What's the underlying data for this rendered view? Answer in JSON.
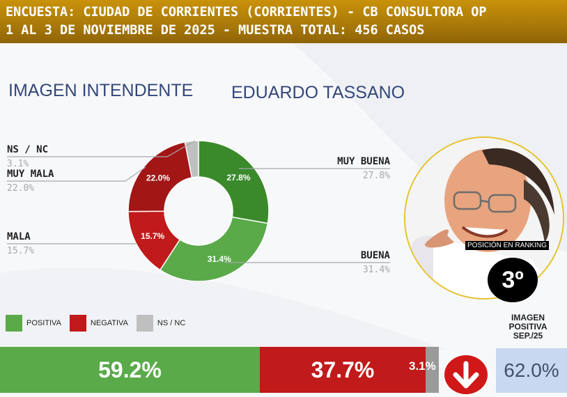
{
  "header": {
    "line1": "ENCUESTA: CIUDAD DE CORRIENTES (CORRIENTES) - CB CONSULTORA OP",
    "line2": "1 AL 3 DE NOVIEMBRE DE 2025 - MUESTRA TOTAL: 456 CASOS"
  },
  "section": {
    "title": "IMAGEN INTENDENTE",
    "person": "EDUARDO TASSANO"
  },
  "colors": {
    "header": "#a8780a",
    "muy_buena": "#3a8a2c",
    "buena": "#5aaa4a",
    "mala": "#c01a1a",
    "muy_mala": "#a21616",
    "ns_nc": "#bfbfbf",
    "positiva": "#5aaa4a",
    "negativa": "#c01a1a",
    "prev_box": "#c8d8f0"
  },
  "chart_data": {
    "type": "pie",
    "categories": [
      "MUY BUENA",
      "BUENA",
      "MALA",
      "MUY MALA",
      "NS / NC"
    ],
    "values": [
      27.8,
      31.4,
      15.7,
      22.0,
      3.1
    ],
    "value_labels": [
      "27.8%",
      "31.4%",
      "15.7%",
      "22.0%",
      "3.1%"
    ],
    "side_values": [
      "27.8%",
      "31.4%",
      "15.7%",
      "22.0%",
      "3.1%"
    ]
  },
  "ranking": {
    "label": "POSICIÓN EN RANKING",
    "value": "3º"
  },
  "legend": [
    {
      "label": "POSITIVA",
      "color": "#5aaa4a"
    },
    {
      "label": "NEGATIVA",
      "color": "#c01a1a"
    },
    {
      "label": "NS / NC",
      "color": "#bfbfbf"
    }
  ],
  "summary_bar": {
    "positiva": 59.2,
    "negativa": 37.7,
    "ns_nc": 3.1,
    "positiva_label": "59.2%",
    "negativa_label": "37.7%",
    "ns_nc_label": "3.1%",
    "trend_icon": "arrow-down-icon"
  },
  "previous": {
    "title_line1": "IMAGEN",
    "title_line2": "POSITIVA",
    "title_line3": "SEP./25",
    "value": "62.0%"
  }
}
